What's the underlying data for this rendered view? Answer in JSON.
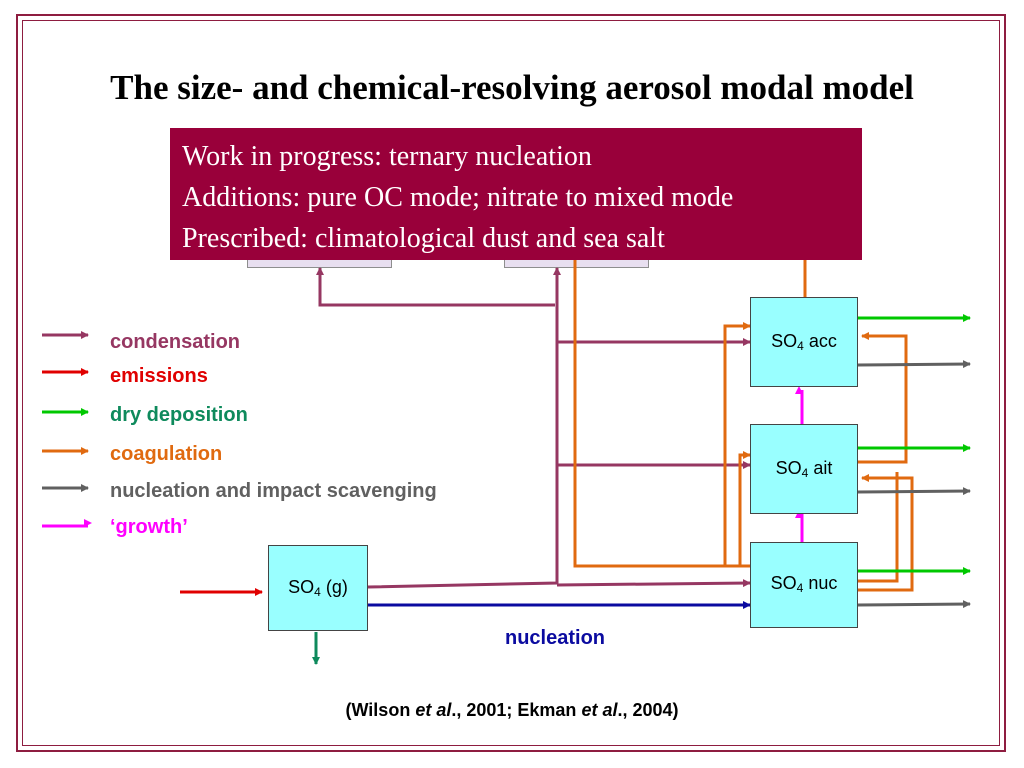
{
  "title": "The size- and chemical-resolving aerosol modal model",
  "info_lines": [
    "Work in progress: ternary nucleation",
    "Additions: pure OC mode; nitrate to mixed mode",
    "Prescribed: climatological dust and sea salt"
  ],
  "modes": {
    "gas": {
      "base": "SO",
      "sub": "4",
      "suffix": " (g)"
    },
    "acc": {
      "base": "SO",
      "sub": "4",
      "suffix": " acc"
    },
    "ait": {
      "base": "SO",
      "sub": "4",
      "suffix": " ait"
    },
    "nuc": {
      "base": "SO",
      "sub": "4",
      "suffix": " nuc"
    }
  },
  "legend": [
    {
      "label": "condensation",
      "color": "#963762"
    },
    {
      "label": "emissions",
      "color": "#e00000"
    },
    {
      "label": "dry deposition",
      "color": "#00c800"
    },
    {
      "label": "coagulation",
      "color": "#e06a10"
    },
    {
      "label": "nucleation and impact scavenging",
      "color": "#606060"
    },
    {
      "label": "‘growth’",
      "color": "#ff00ff"
    }
  ],
  "nucleation_label": "nucleation",
  "citation": {
    "parts": [
      "(Wilson ",
      "et al",
      "., 2001; Ekman ",
      "et al",
      "., 2004)"
    ]
  },
  "colors": {
    "frame": "#8e1d40",
    "infobox": "#99003a",
    "mode_fill": "#99ffff",
    "nucleation_arrow": "#0b0ba0",
    "dry_deposition_gas": "#0e8a5c"
  }
}
